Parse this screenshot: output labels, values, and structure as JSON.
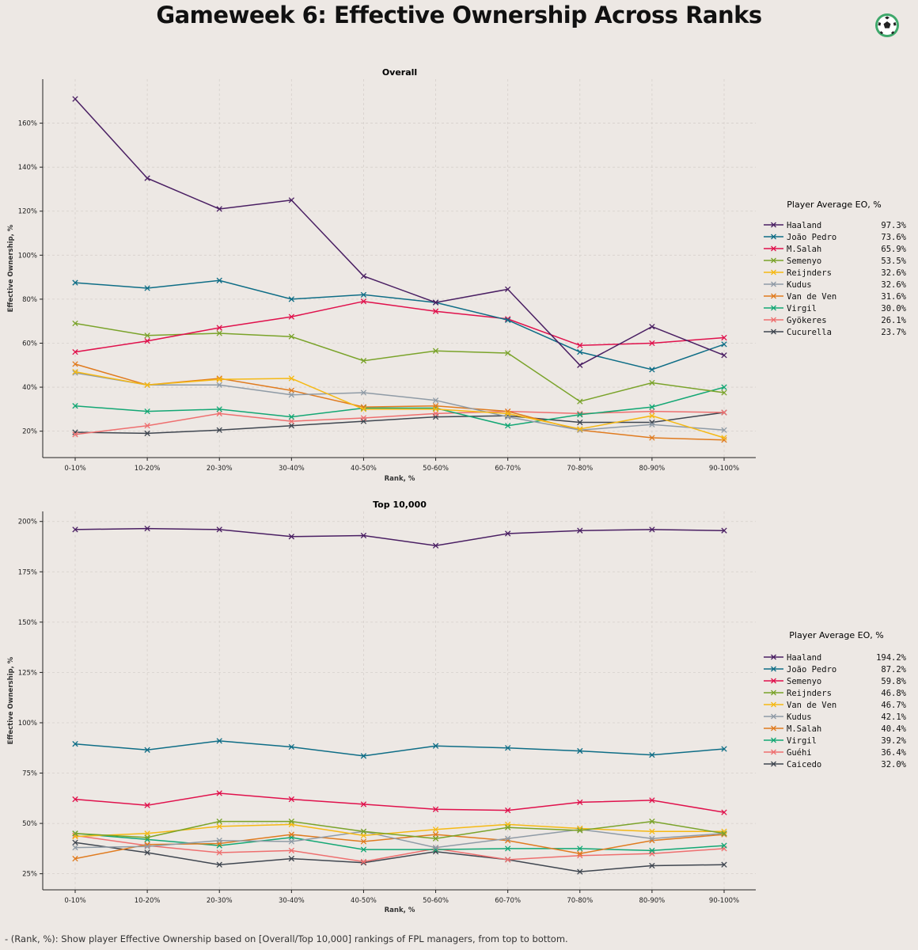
{
  "title": "Gameweek 6: Effective Ownership Across Ranks",
  "footnote": "- (Rank, %): Show player Effective Ownership based on [Overall/Top 10,000] rankings of FPL managers, from top to bottom.",
  "logo_icon": "soccer-ball-icon",
  "chart_data": [
    {
      "type": "line",
      "title": "Overall",
      "xlabel": "Rank, %",
      "ylabel": "Effective Ownership, %",
      "ylim": [
        8,
        180
      ],
      "yticks": [
        20,
        40,
        60,
        80,
        100,
        120,
        140,
        160
      ],
      "ytick_suffix": "%",
      "grid": true,
      "legend_title": "Player Average EO, %",
      "legend_position": "right",
      "categories": [
        "0-10%",
        "10-20%",
        "20-30%",
        "30-40%",
        "40-50%",
        "50-60%",
        "60-70%",
        "70-80%",
        "80-90%",
        "90-100%"
      ],
      "series": [
        {
          "name": "Haaland",
          "avg": "97.3%",
          "color": "#4a1f63",
          "values": [
            171,
            135,
            121,
            125,
            90.5,
            78.5,
            84.5,
            50,
            67.5,
            54.5
          ]
        },
        {
          "name": "João Pedro",
          "avg": "73.6%",
          "color": "#0e6d86",
          "values": [
            87.5,
            85,
            88.5,
            80,
            82,
            78.5,
            70.5,
            56,
            48,
            59.5
          ]
        },
        {
          "name": "M.Salah",
          "avg": "65.9%",
          "color": "#e0114c",
          "values": [
            56,
            61,
            67,
            72,
            79,
            74.5,
            71,
            59,
            60,
            62.5
          ]
        },
        {
          "name": "Semenyo",
          "avg": "53.5%",
          "color": "#7aa32a",
          "values": [
            69,
            63.5,
            64.5,
            63,
            52,
            56.5,
            55.5,
            33.5,
            42,
            37.5
          ]
        },
        {
          "name": "Reijnders",
          "avg": "32.6%",
          "color": "#f5b914",
          "values": [
            47,
            41,
            43.5,
            44,
            30,
            30,
            28,
            21,
            27,
            17
          ]
        },
        {
          "name": "Kudus",
          "avg": "32.6%",
          "color": "#8f9ba6",
          "values": [
            46.5,
            41,
            41,
            36.5,
            37.5,
            34,
            26.5,
            20.5,
            23,
            20.5
          ]
        },
        {
          "name": "Van de Ven",
          "avg": "31.6%",
          "color": "#e07b1f",
          "values": [
            50.5,
            41,
            44,
            38.5,
            31,
            31.5,
            29,
            20.5,
            17,
            16
          ]
        },
        {
          "name": "Virgil",
          "avg": "30.0%",
          "color": "#13a774",
          "values": [
            31.5,
            29,
            30,
            26.5,
            30.5,
            30.5,
            22.5,
            27.5,
            31,
            40
          ]
        },
        {
          "name": "Gyökeres",
          "avg": "26.1%",
          "color": "#ee6f6f",
          "values": [
            18.5,
            22.5,
            28,
            24.5,
            26,
            28,
            29,
            28,
            29,
            28.5
          ]
        },
        {
          "name": "Cucurella",
          "avg": "23.7%",
          "color": "#3f4650",
          "values": [
            19.5,
            19,
            20.5,
            22.5,
            24.5,
            26.5,
            27,
            24,
            24,
            28.5
          ]
        }
      ]
    },
    {
      "type": "line",
      "title": "Top 10,000",
      "xlabel": "Rank, %",
      "ylabel": "Effective Ownership, %",
      "ylim": [
        17,
        205
      ],
      "yticks": [
        25,
        50,
        75,
        100,
        125,
        150,
        175,
        200
      ],
      "ytick_suffix": "%",
      "grid": true,
      "legend_title": "Player Average EO, %",
      "legend_position": "right",
      "categories": [
        "0-10%",
        "10-20%",
        "20-30%",
        "30-40%",
        "40-50%",
        "50-60%",
        "60-70%",
        "70-80%",
        "80-90%",
        "90-100%"
      ],
      "series": [
        {
          "name": "Haaland",
          "avg": "194.2%",
          "color": "#4a1f63",
          "values": [
            196,
            196.5,
            196,
            192.5,
            193,
            188,
            194,
            195.5,
            196,
            195.5
          ]
        },
        {
          "name": "João Pedro",
          "avg": "87.2%",
          "color": "#0e6d86",
          "values": [
            89.5,
            86.5,
            91,
            88,
            83.5,
            88.5,
            87.5,
            86,
            84,
            87
          ]
        },
        {
          "name": "Semenyo",
          "avg": "59.8%",
          "color": "#e0114c",
          "values": [
            62,
            59,
            65,
            62,
            59.5,
            57,
            56.5,
            60.5,
            61.5,
            55.5
          ]
        },
        {
          "name": "Reijnders",
          "avg": "46.8%",
          "color": "#7aa32a",
          "values": [
            45,
            43,
            51,
            51,
            46,
            42.5,
            48,
            46.5,
            51,
            45
          ]
        },
        {
          "name": "Van de Ven",
          "avg": "46.7%",
          "color": "#f5b914",
          "values": [
            43.5,
            45,
            48.5,
            49.5,
            44,
            47,
            49.5,
            47.5,
            46,
            46
          ]
        },
        {
          "name": "Kudus",
          "avg": "42.1%",
          "color": "#8f9ba6",
          "values": [
            38,
            38.5,
            41.5,
            41,
            46,
            38,
            42.5,
            47,
            42.5,
            45
          ]
        },
        {
          "name": "M.Salah",
          "avg": "40.4%",
          "color": "#e07b1f",
          "values": [
            32.5,
            39.5,
            40,
            44.5,
            41,
            44.5,
            41.5,
            35,
            41.5,
            44.5
          ]
        },
        {
          "name": "Virgil",
          "avg": "39.2%",
          "color": "#13a774",
          "values": [
            45,
            42,
            39,
            43,
            37,
            37,
            37.5,
            37.5,
            36.5,
            39
          ]
        },
        {
          "name": "Guéhi",
          "avg": "36.4%",
          "color": "#ee6f6f",
          "values": [
            44,
            39,
            35.5,
            36.5,
            31,
            37.5,
            32,
            34,
            35,
            37.5
          ]
        },
        {
          "name": "Caicedo",
          "avg": "32.0%",
          "color": "#3f4650",
          "values": [
            40.5,
            35.5,
            29.5,
            32.5,
            30.5,
            36,
            32,
            26,
            29,
            29.5
          ]
        }
      ]
    }
  ]
}
